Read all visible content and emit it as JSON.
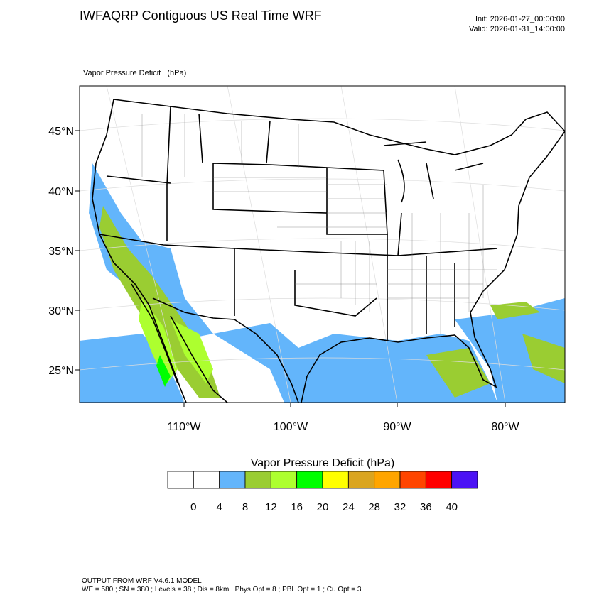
{
  "header": {
    "title": "IWFAQRP Contiguous US Real Time WRF",
    "init": "Init: 2026-01-27_00:00:00",
    "valid": "Valid: 2026-01-31_14:00:00"
  },
  "map": {
    "field_label": "Vapor Pressure Deficit   (hPa)",
    "lat_labels": [
      "45°N",
      "40°N",
      "35°N",
      "30°N",
      "25°N"
    ],
    "lon_labels": [
      "110°W",
      "100°W",
      "90°W",
      "80°W"
    ]
  },
  "colorbar": {
    "title": "Vapor Pressure Deficit  (hPa)",
    "levels": [
      0,
      4,
      8,
      12,
      16,
      20,
      24,
      28,
      32,
      36,
      40
    ],
    "colors": [
      "#ffffff",
      "#ffffff",
      "#63b5fb",
      "#9acd32",
      "#adff2f",
      "#00ff00",
      "#ffff00",
      "#daa520",
      "#ffa500",
      "#ff4500",
      "#ff0000",
      "#4b12f5"
    ]
  },
  "footer": {
    "line1": "OUTPUT FROM WRF V4.6.1 MODEL",
    "line2": "WE = 580 ; SN = 380 ; Levels = 38 ; Dis = 8km ; Phys Opt = 8 ; PBL Opt = 1 ; Cu Opt = 3"
  }
}
